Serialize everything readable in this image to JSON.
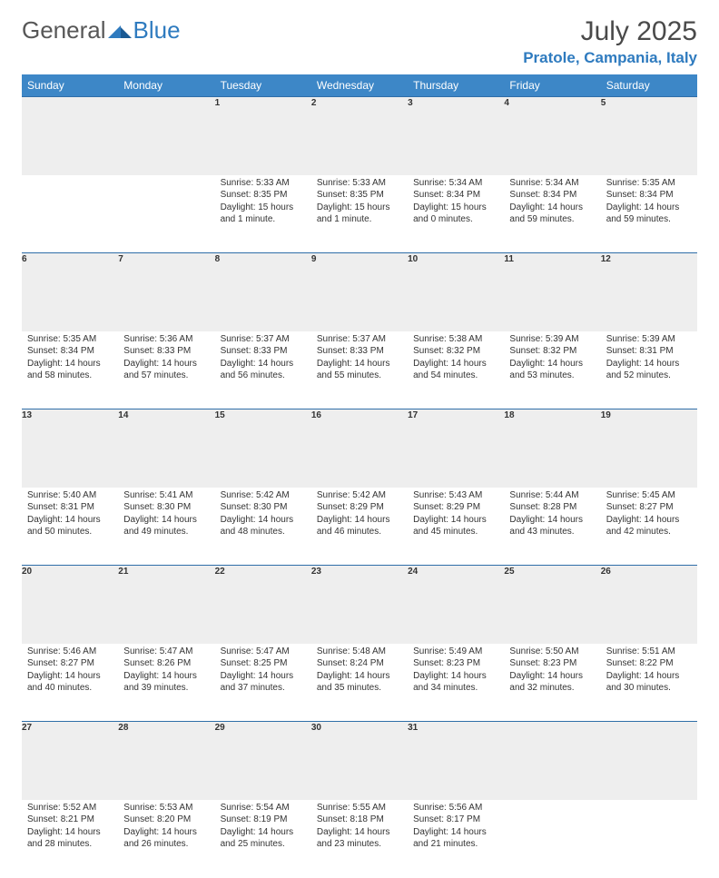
{
  "logo": {
    "text_general": "General",
    "text_blue": "Blue"
  },
  "title": "July 2025",
  "location": "Pratole, Campania, Italy",
  "colors": {
    "header_bg": "#3d87c7",
    "header_text": "#ffffff",
    "daynum_bg": "#eeeeee",
    "daynum_border_top": "#2f6ea8",
    "body_text": "#333333",
    "logo_gray": "#575757",
    "logo_blue": "#2f7bbf"
  },
  "day_headers": [
    "Sunday",
    "Monday",
    "Tuesday",
    "Wednesday",
    "Thursday",
    "Friday",
    "Saturday"
  ],
  "weeks": [
    [
      null,
      null,
      {
        "n": "1",
        "sr": "Sunrise: 5:33 AM",
        "ss": "Sunset: 8:35 PM",
        "dl": "Daylight: 15 hours and 1 minute."
      },
      {
        "n": "2",
        "sr": "Sunrise: 5:33 AM",
        "ss": "Sunset: 8:35 PM",
        "dl": "Daylight: 15 hours and 1 minute."
      },
      {
        "n": "3",
        "sr": "Sunrise: 5:34 AM",
        "ss": "Sunset: 8:34 PM",
        "dl": "Daylight: 15 hours and 0 minutes."
      },
      {
        "n": "4",
        "sr": "Sunrise: 5:34 AM",
        "ss": "Sunset: 8:34 PM",
        "dl": "Daylight: 14 hours and 59 minutes."
      },
      {
        "n": "5",
        "sr": "Sunrise: 5:35 AM",
        "ss": "Sunset: 8:34 PM",
        "dl": "Daylight: 14 hours and 59 minutes."
      }
    ],
    [
      {
        "n": "6",
        "sr": "Sunrise: 5:35 AM",
        "ss": "Sunset: 8:34 PM",
        "dl": "Daylight: 14 hours and 58 minutes."
      },
      {
        "n": "7",
        "sr": "Sunrise: 5:36 AM",
        "ss": "Sunset: 8:33 PM",
        "dl": "Daylight: 14 hours and 57 minutes."
      },
      {
        "n": "8",
        "sr": "Sunrise: 5:37 AM",
        "ss": "Sunset: 8:33 PM",
        "dl": "Daylight: 14 hours and 56 minutes."
      },
      {
        "n": "9",
        "sr": "Sunrise: 5:37 AM",
        "ss": "Sunset: 8:33 PM",
        "dl": "Daylight: 14 hours and 55 minutes."
      },
      {
        "n": "10",
        "sr": "Sunrise: 5:38 AM",
        "ss": "Sunset: 8:32 PM",
        "dl": "Daylight: 14 hours and 54 minutes."
      },
      {
        "n": "11",
        "sr": "Sunrise: 5:39 AM",
        "ss": "Sunset: 8:32 PM",
        "dl": "Daylight: 14 hours and 53 minutes."
      },
      {
        "n": "12",
        "sr": "Sunrise: 5:39 AM",
        "ss": "Sunset: 8:31 PM",
        "dl": "Daylight: 14 hours and 52 minutes."
      }
    ],
    [
      {
        "n": "13",
        "sr": "Sunrise: 5:40 AM",
        "ss": "Sunset: 8:31 PM",
        "dl": "Daylight: 14 hours and 50 minutes."
      },
      {
        "n": "14",
        "sr": "Sunrise: 5:41 AM",
        "ss": "Sunset: 8:30 PM",
        "dl": "Daylight: 14 hours and 49 minutes."
      },
      {
        "n": "15",
        "sr": "Sunrise: 5:42 AM",
        "ss": "Sunset: 8:30 PM",
        "dl": "Daylight: 14 hours and 48 minutes."
      },
      {
        "n": "16",
        "sr": "Sunrise: 5:42 AM",
        "ss": "Sunset: 8:29 PM",
        "dl": "Daylight: 14 hours and 46 minutes."
      },
      {
        "n": "17",
        "sr": "Sunrise: 5:43 AM",
        "ss": "Sunset: 8:29 PM",
        "dl": "Daylight: 14 hours and 45 minutes."
      },
      {
        "n": "18",
        "sr": "Sunrise: 5:44 AM",
        "ss": "Sunset: 8:28 PM",
        "dl": "Daylight: 14 hours and 43 minutes."
      },
      {
        "n": "19",
        "sr": "Sunrise: 5:45 AM",
        "ss": "Sunset: 8:27 PM",
        "dl": "Daylight: 14 hours and 42 minutes."
      }
    ],
    [
      {
        "n": "20",
        "sr": "Sunrise: 5:46 AM",
        "ss": "Sunset: 8:27 PM",
        "dl": "Daylight: 14 hours and 40 minutes."
      },
      {
        "n": "21",
        "sr": "Sunrise: 5:47 AM",
        "ss": "Sunset: 8:26 PM",
        "dl": "Daylight: 14 hours and 39 minutes."
      },
      {
        "n": "22",
        "sr": "Sunrise: 5:47 AM",
        "ss": "Sunset: 8:25 PM",
        "dl": "Daylight: 14 hours and 37 minutes."
      },
      {
        "n": "23",
        "sr": "Sunrise: 5:48 AM",
        "ss": "Sunset: 8:24 PM",
        "dl": "Daylight: 14 hours and 35 minutes."
      },
      {
        "n": "24",
        "sr": "Sunrise: 5:49 AM",
        "ss": "Sunset: 8:23 PM",
        "dl": "Daylight: 14 hours and 34 minutes."
      },
      {
        "n": "25",
        "sr": "Sunrise: 5:50 AM",
        "ss": "Sunset: 8:23 PM",
        "dl": "Daylight: 14 hours and 32 minutes."
      },
      {
        "n": "26",
        "sr": "Sunrise: 5:51 AM",
        "ss": "Sunset: 8:22 PM",
        "dl": "Daylight: 14 hours and 30 minutes."
      }
    ],
    [
      {
        "n": "27",
        "sr": "Sunrise: 5:52 AM",
        "ss": "Sunset: 8:21 PM",
        "dl": "Daylight: 14 hours and 28 minutes."
      },
      {
        "n": "28",
        "sr": "Sunrise: 5:53 AM",
        "ss": "Sunset: 8:20 PM",
        "dl": "Daylight: 14 hours and 26 minutes."
      },
      {
        "n": "29",
        "sr": "Sunrise: 5:54 AM",
        "ss": "Sunset: 8:19 PM",
        "dl": "Daylight: 14 hours and 25 minutes."
      },
      {
        "n": "30",
        "sr": "Sunrise: 5:55 AM",
        "ss": "Sunset: 8:18 PM",
        "dl": "Daylight: 14 hours and 23 minutes."
      },
      {
        "n": "31",
        "sr": "Sunrise: 5:56 AM",
        "ss": "Sunset: 8:17 PM",
        "dl": "Daylight: 14 hours and 21 minutes."
      },
      null,
      null
    ]
  ]
}
